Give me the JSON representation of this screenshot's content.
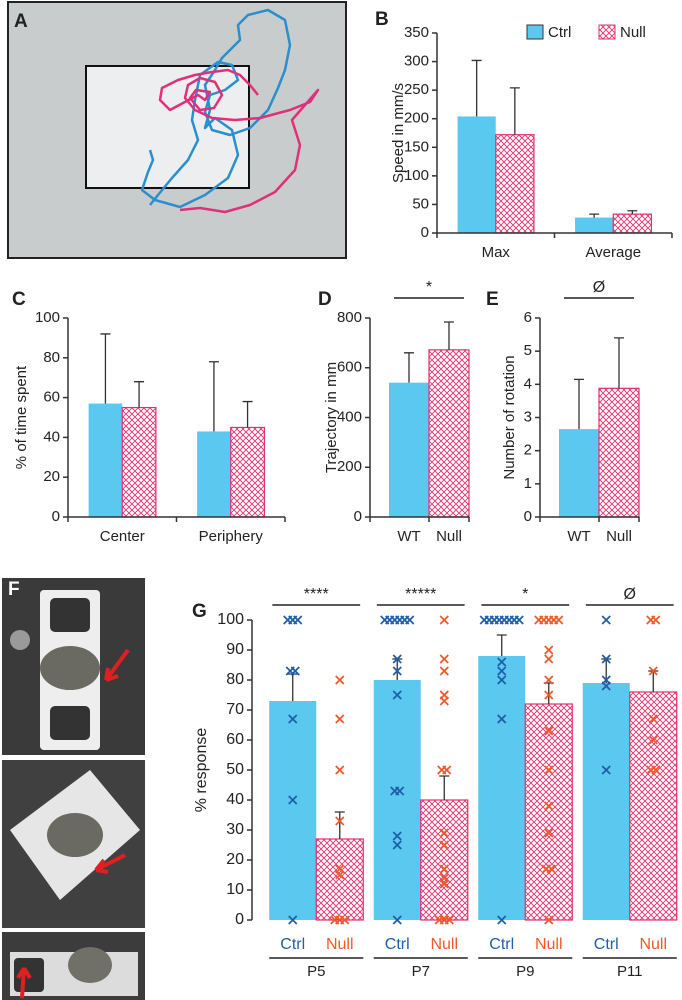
{
  "figure": {
    "panel_a": "A",
    "panel_f": "F"
  },
  "chart_data": [
    {
      "type": "bar",
      "panel": "B",
      "y_label": "Speed in mm/s",
      "categories": [
        "Max",
        "Average"
      ],
      "series": [
        {
          "name": "Ctrl",
          "color": "#5bc8f0",
          "fill": "solid",
          "values": [
            204,
            27
          ],
          "errors": [
            98,
            6
          ]
        },
        {
          "name": "Null",
          "color": "#e0306e",
          "fill": "crosshatch",
          "values": [
            172,
            33
          ],
          "errors": [
            82,
            6
          ]
        }
      ],
      "ylim": [
        0,
        350
      ],
      "yticks": [
        0,
        50,
        100,
        150,
        200,
        250,
        300,
        350
      ],
      "legend": "top-right",
      "x_axis_line": true
    },
    {
      "type": "bar",
      "panel": "C",
      "y_label": "% of time spent",
      "categories": [
        "Center",
        "Periphery"
      ],
      "series": [
        {
          "name": "Ctrl",
          "color": "#5bc8f0",
          "fill": "solid",
          "values": [
            57,
            43
          ],
          "errors": [
            35,
            35
          ]
        },
        {
          "name": "Null",
          "color": "#e0306e",
          "fill": "crosshatch",
          "values": [
            55,
            45
          ],
          "errors": [
            13,
            13
          ]
        }
      ],
      "ylim": [
        0,
        100
      ],
      "yticks": [
        0,
        20,
        40,
        60,
        80,
        100
      ],
      "x_axis_line": true
    },
    {
      "type": "bar",
      "panel": "D",
      "y_label": "Trajectory in mm",
      "categories": [
        "WT",
        "Null"
      ],
      "values": [
        540,
        672
      ],
      "errors": [
        120,
        112
      ],
      "colors": [
        "#5bc8f0",
        "#e0306e"
      ],
      "fills": [
        "solid",
        "crosshatch"
      ],
      "ylim": [
        0,
        800
      ],
      "yticks": [
        0,
        200,
        400,
        600,
        800
      ],
      "significance": "*",
      "x_axis_line": true
    },
    {
      "type": "bar",
      "panel": "E",
      "y_label": "Number of rotation",
      "categories": [
        "WT",
        "Null"
      ],
      "values": [
        2.65,
        3.88
      ],
      "errors": [
        1.5,
        1.52
      ],
      "colors": [
        "#5bc8f0",
        "#e0306e"
      ],
      "fills": [
        "solid",
        "crosshatch"
      ],
      "ylim": [
        0,
        6
      ],
      "yticks": [
        0,
        1,
        2,
        3,
        4,
        5,
        6
      ],
      "significance": "Ø",
      "x_axis_line": true
    },
    {
      "type": "bar",
      "panel": "G",
      "y_label": "% response",
      "categories": [
        "P5",
        "P7",
        "P9",
        "P11"
      ],
      "series": [
        {
          "name": "Ctrl",
          "color": "#5bc8f0",
          "fill": "solid",
          "marker_color": "#1f5fa8",
          "values": [
            73,
            80,
            88,
            79
          ],
          "errors": [
            9,
            7,
            7,
            8
          ],
          "points": [
            [
              100,
              100,
              100,
              83,
              83,
              67,
              40,
              0
            ],
            [
              100,
              100,
              100,
              100,
              100,
              100,
              87,
              83,
              75,
              43,
              43,
              28,
              25,
              0
            ],
            [
              100,
              100,
              100,
              100,
              100,
              100,
              100,
              100,
              86,
              83,
              80,
              67,
              0
            ],
            [
              100,
              87,
              80,
              78,
              50
            ]
          ]
        },
        {
          "name": "Null",
          "color": "#e0306e",
          "fill": "crosshatch",
          "marker_color": "#f05a28",
          "values": [
            27,
            40,
            72,
            76
          ],
          "errors": [
            9,
            8,
            7,
            7
          ],
          "points": [
            [
              80,
              67,
              50,
              33,
              17,
              15,
              0,
              0,
              0
            ],
            [
              100,
              87,
              83,
              75,
              73,
              50,
              50,
              29,
              25,
              17,
              14,
              12,
              0,
              0,
              0
            ],
            [
              100,
              100,
              100,
              100,
              100,
              90,
              87,
              80,
              75,
              63,
              50,
              38,
              29,
              17,
              17,
              0
            ],
            [
              100,
              100,
              83,
              67,
              60,
              50,
              50
            ]
          ]
        }
      ],
      "ylim": [
        0,
        100
      ],
      "yticks": [
        0,
        10,
        20,
        30,
        40,
        50,
        60,
        70,
        80,
        90,
        100
      ],
      "significance": [
        "****",
        "*****",
        "*",
        "Ø"
      ],
      "x_axis_line": false
    }
  ]
}
